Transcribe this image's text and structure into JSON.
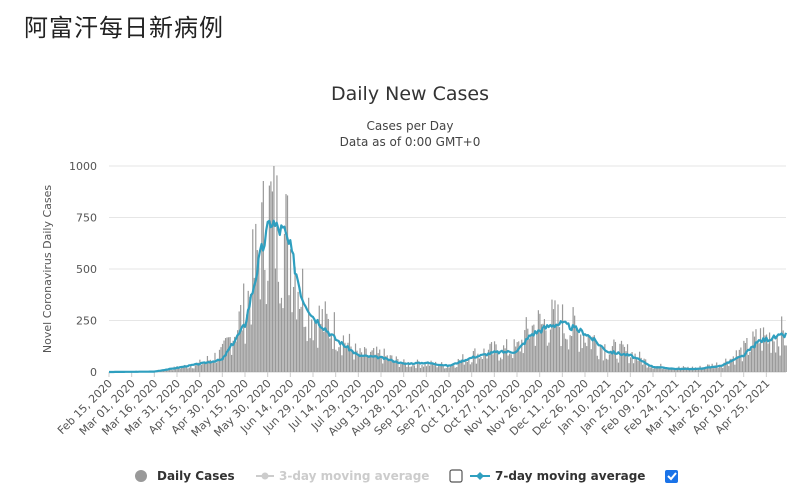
{
  "page": {
    "title": "阿富汗每日新病例"
  },
  "chart_data": {
    "type": "bar",
    "title": "Daily New Cases",
    "subtitle_lines": [
      "Cases per Day",
      "Data as of 0:00 GMT+0"
    ],
    "ylabel": "Novel Coronavirus Daily Cases",
    "xlabel": "",
    "ylim": [
      0,
      1000
    ],
    "y_ticks": [
      0,
      250,
      500,
      750,
      1000
    ],
    "grid": true,
    "x_tick_labels": [
      "Feb 15, 2020",
      "Mar 01, 2020",
      "Mar 16, 2020",
      "Mar 31, 2020",
      "Apr 15, 2020",
      "Apr 30, 2020",
      "May 15, 2020",
      "May 30, 2020",
      "Jun 14, 2020",
      "Jun 29, 2020",
      "Jul 14, 2020",
      "Jul 29, 2020",
      "Aug 13, 2020",
      "Aug 28, 2020",
      "Sep 12, 2020",
      "Sep 27, 2020",
      "Oct 12, 2020",
      "Oct 27, 2020",
      "Nov 11, 2020",
      "Nov 26, 2020",
      "Dec 11, 2020",
      "Dec 26, 2020",
      "Jan 10, 2021",
      "Jan 25, 2021",
      "Feb 09, 2021",
      "Feb 24, 2021",
      "Mar 11, 2021",
      "Mar 26, 2021",
      "Apr 10, 2021",
      "Apr 25, 2021"
    ],
    "x_start": "Feb 15, 2020",
    "x_end": "May 08, 2021",
    "series": [
      {
        "name": "Daily Cases",
        "type": "bar",
        "color": "#999999",
        "visible": true,
        "anchors": [
          [
            "2020-02-15",
            0
          ],
          [
            "2020-03-16",
            2
          ],
          [
            "2020-03-31",
            20
          ],
          [
            "2020-04-15",
            40
          ],
          [
            "2020-04-30",
            90
          ],
          [
            "2020-05-15",
            300
          ],
          [
            "2020-05-25",
            600
          ],
          [
            "2020-06-01",
            760
          ],
          [
            "2020-06-05",
            700
          ],
          [
            "2020-06-14",
            600
          ],
          [
            "2020-06-22",
            380
          ],
          [
            "2020-06-29",
            270
          ],
          [
            "2020-07-14",
            200
          ],
          [
            "2020-07-29",
            80
          ],
          [
            "2020-08-13",
            80
          ],
          [
            "2020-08-28",
            40
          ],
          [
            "2020-09-12",
            40
          ],
          [
            "2020-09-27",
            30
          ],
          [
            "2020-10-12",
            80
          ],
          [
            "2020-10-27",
            100
          ],
          [
            "2020-11-11",
            110
          ],
          [
            "2020-11-20",
            210
          ],
          [
            "2020-12-04",
            240
          ],
          [
            "2020-12-11",
            230
          ],
          [
            "2020-12-26",
            180
          ],
          [
            "2021-01-10",
            110
          ],
          [
            "2021-01-25",
            90
          ],
          [
            "2021-02-09",
            30
          ],
          [
            "2021-02-24",
            20
          ],
          [
            "2021-03-11",
            20
          ],
          [
            "2021-03-26",
            40
          ],
          [
            "2021-04-10",
            100
          ],
          [
            "2021-04-20",
            160
          ],
          [
            "2021-05-08",
            180
          ]
        ]
      },
      {
        "name": "3-day moving average",
        "type": "line",
        "color": "#cccccc",
        "visible": false
      },
      {
        "name": "7-day moving average",
        "type": "line",
        "color": "#2f9fbf",
        "visible": true,
        "anchors": [
          [
            "2020-02-15",
            0
          ],
          [
            "2020-03-16",
            2
          ],
          [
            "2020-03-31",
            20
          ],
          [
            "2020-04-15",
            40
          ],
          [
            "2020-04-30",
            60
          ],
          [
            "2020-05-15",
            230
          ],
          [
            "2020-05-25",
            560
          ],
          [
            "2020-06-01",
            740
          ],
          [
            "2020-06-05",
            700
          ],
          [
            "2020-06-10",
            680
          ],
          [
            "2020-06-14",
            600
          ],
          [
            "2020-06-22",
            360
          ],
          [
            "2020-06-29",
            270
          ],
          [
            "2020-07-14",
            160
          ],
          [
            "2020-07-29",
            80
          ],
          [
            "2020-08-13",
            70
          ],
          [
            "2020-08-28",
            40
          ],
          [
            "2020-09-12",
            45
          ],
          [
            "2020-09-27",
            30
          ],
          [
            "2020-10-12",
            70
          ],
          [
            "2020-10-27",
            95
          ],
          [
            "2020-11-11",
            100
          ],
          [
            "2020-11-20",
            180
          ],
          [
            "2020-12-04",
            230
          ],
          [
            "2020-12-11",
            235
          ],
          [
            "2020-12-26",
            190
          ],
          [
            "2021-01-10",
            100
          ],
          [
            "2021-01-25",
            80
          ],
          [
            "2021-02-09",
            25
          ],
          [
            "2021-02-24",
            15
          ],
          [
            "2021-03-11",
            15
          ],
          [
            "2021-03-26",
            30
          ],
          [
            "2021-04-10",
            80
          ],
          [
            "2021-04-20",
            150
          ],
          [
            "2021-05-08",
            180
          ]
        ]
      }
    ],
    "legend": {
      "position": "bottom",
      "items": [
        {
          "label": "Daily Cases",
          "active": true
        },
        {
          "label": "3-day moving average",
          "active": false,
          "checkbox_checked": false
        },
        {
          "label": "7-day moving average",
          "active": true,
          "checkbox_checked": true
        }
      ]
    }
  }
}
